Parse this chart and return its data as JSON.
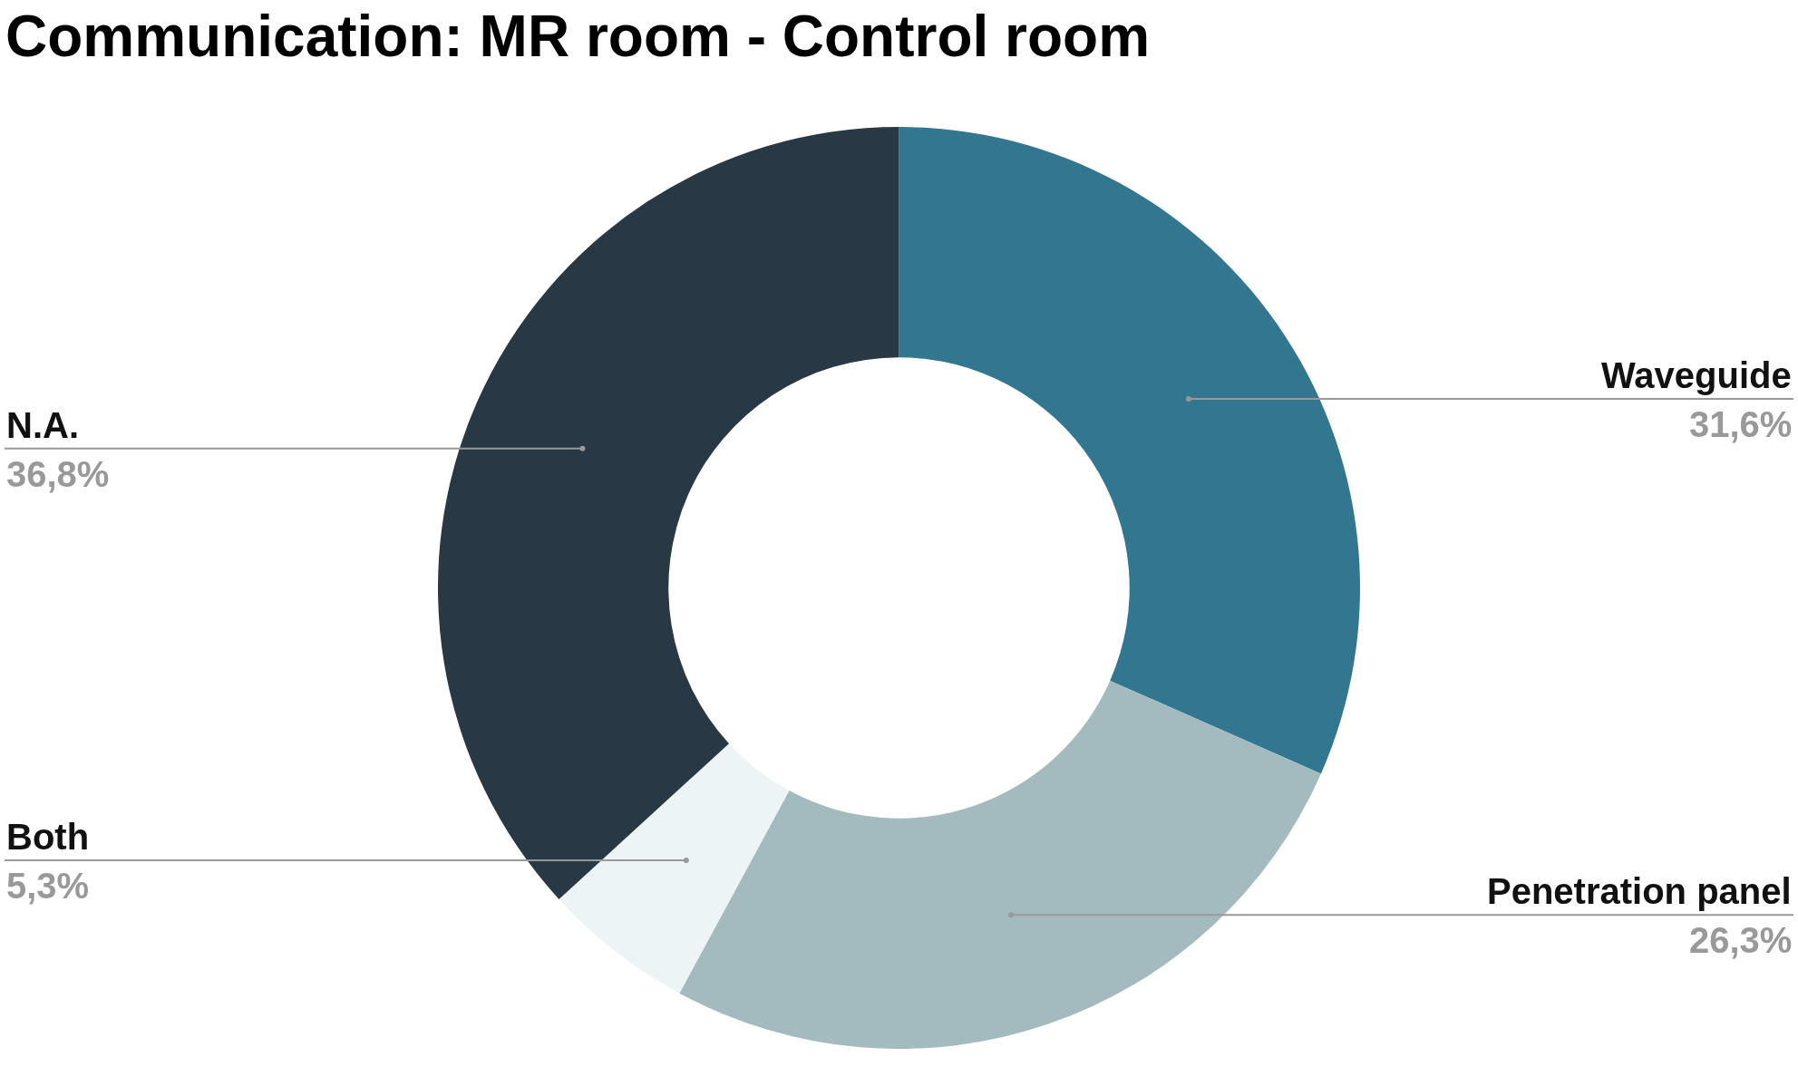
{
  "chart_data": {
    "type": "donut",
    "title": "Communication: MR room - Control room",
    "categories": [
      "Waveguide",
      "Penetration panel",
      "Both",
      "N.A."
    ],
    "values": [
      31.6,
      26.3,
      5.3,
      36.8
    ],
    "colors": [
      "#337690",
      "#a3bbbf",
      "#edf4f6",
      "#283845"
    ],
    "value_labels": [
      "31,6%",
      "26,3%",
      "5,3%",
      "36,8%"
    ]
  }
}
